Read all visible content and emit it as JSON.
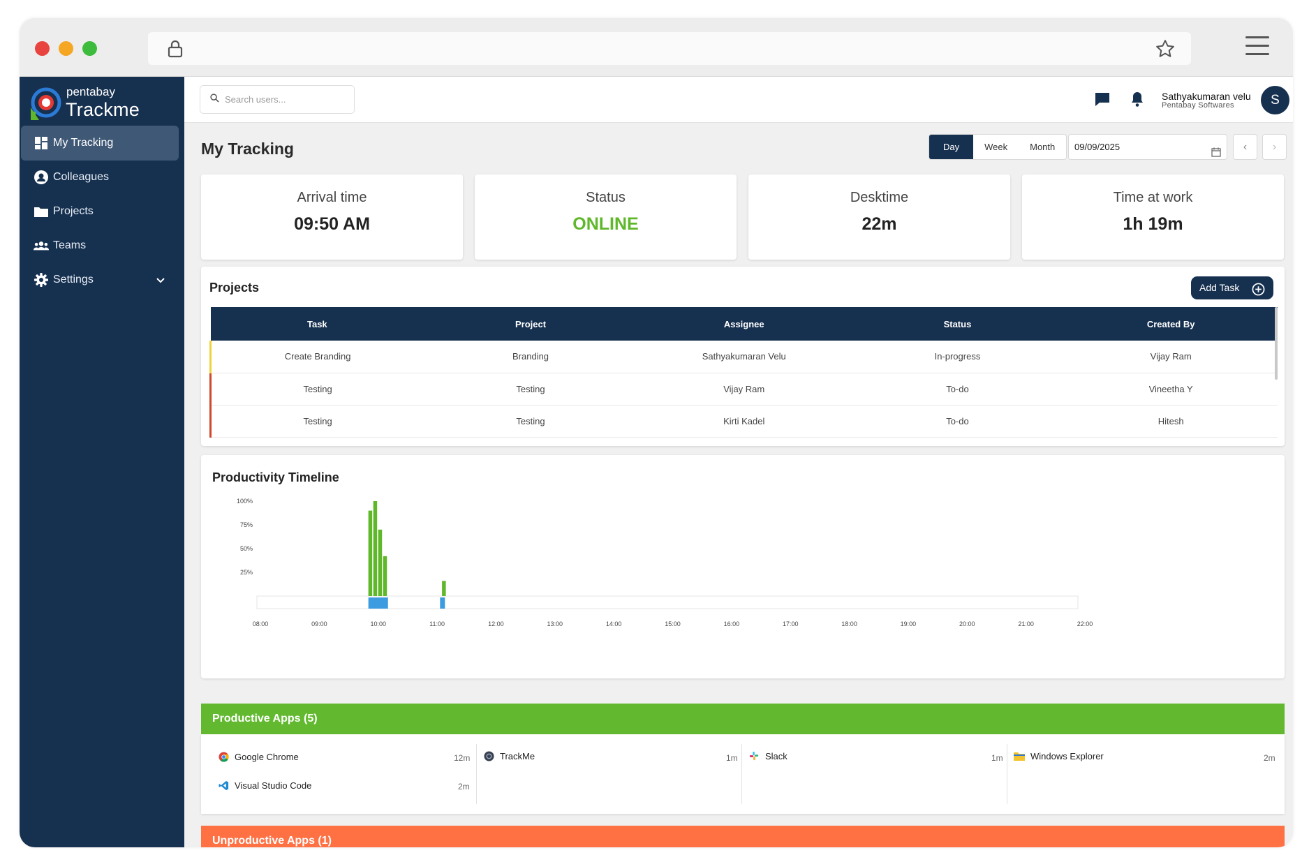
{
  "browser": {
    "dot_colors": [
      "#e8433e",
      "#f5a623",
      "#3cbb3c"
    ]
  },
  "sidebar": {
    "brand_top": "pentabay",
    "brand_main": "Trackme",
    "items": [
      {
        "label": "My Tracking",
        "icon": "dashboard-icon"
      },
      {
        "label": "Colleagues",
        "icon": "user-circle-icon"
      },
      {
        "label": "Projects",
        "icon": "folder-icon"
      },
      {
        "label": "Teams",
        "icon": "users-icon"
      },
      {
        "label": "Settings",
        "icon": "gear-icon"
      }
    ]
  },
  "topbar": {
    "search_placeholder": "Search users...",
    "user_name": "Sathyakumaran velu",
    "user_org": "Pentabay Softwares",
    "avatar_letter": "S"
  },
  "page": {
    "title": "My Tracking",
    "range_tabs": [
      "Day",
      "Week",
      "Month"
    ],
    "active_tab": "Day",
    "date": "09/09/2025"
  },
  "stats": [
    {
      "label": "Arrival time",
      "value": "09:50 AM"
    },
    {
      "label": "Status",
      "value": "ONLINE"
    },
    {
      "label": "Desktime",
      "value": "22m"
    },
    {
      "label": "Time at work",
      "value": "1h 19m"
    }
  ],
  "projects": {
    "title": "Projects",
    "add_label": "Add Task",
    "columns": [
      "Task",
      "Project",
      "Assignee",
      "Status",
      "Created By"
    ],
    "rows": [
      {
        "task": "Create Branding",
        "project": "Branding",
        "assignee": "Sathyakumaran Velu",
        "status": "In-progress",
        "created_by": "Vijay Ram",
        "accent": "#f0d23a"
      },
      {
        "task": "Testing",
        "project": "Testing",
        "assignee": "Vijay Ram",
        "status": "To-do",
        "created_by": "Vineetha Y",
        "accent": "#d0472a"
      },
      {
        "task": "Testing",
        "project": "Testing",
        "assignee": "Kirti Kadel",
        "status": "To-do",
        "created_by": "Hitesh",
        "accent": "#d0472a"
      }
    ]
  },
  "timeline": {
    "title": "Productivity Timeline",
    "y_ticks": [
      "100%",
      "75%",
      "50%",
      "25%"
    ],
    "x_ticks": [
      "08:00",
      "09:00",
      "10:00",
      "11:00",
      "12:00",
      "13:00",
      "14:00",
      "15:00",
      "16:00",
      "17:00",
      "18:00",
      "19:00",
      "20:00",
      "21:00",
      "22:00"
    ]
  },
  "chart_data": {
    "type": "bar",
    "title": "Productivity Timeline",
    "xlabel": "",
    "ylabel": "",
    "x_range": [
      "08:00",
      "22:00"
    ],
    "ylim": [
      0,
      100
    ],
    "series": [
      {
        "color": "#5fb72a",
        "points": [
          {
            "x": "09:50",
            "y": 90
          },
          {
            "x": "09:55",
            "y": 100
          },
          {
            "x": "10:00",
            "y": 70
          },
          {
            "x": "10:05",
            "y": 42
          },
          {
            "x": "11:05",
            "y": 16
          }
        ]
      }
    ],
    "activity_spans": [
      {
        "start": "09:50",
        "end": "10:10",
        "color": "#3d9be0"
      },
      {
        "start": "11:03",
        "end": "11:08",
        "color": "#3d9be0"
      }
    ]
  },
  "productive": {
    "title": "Productive Apps (5)",
    "color": "#62b92f",
    "apps": [
      {
        "name": "Google Chrome",
        "time": "12m",
        "icon": "chrome-icon"
      },
      {
        "name": "Visual Studio Code",
        "time": "2m",
        "icon": "vscode-icon"
      },
      {
        "name": "TrackMe",
        "time": "1m",
        "icon": "trackme-icon"
      },
      {
        "name": "Slack",
        "time": "1m",
        "icon": "slack-icon"
      },
      {
        "name": "Windows Explorer",
        "time": "2m",
        "icon": "folder-icon"
      }
    ]
  },
  "unproductive": {
    "title": "Unproductive Apps (1)",
    "color": "#ff7043"
  }
}
